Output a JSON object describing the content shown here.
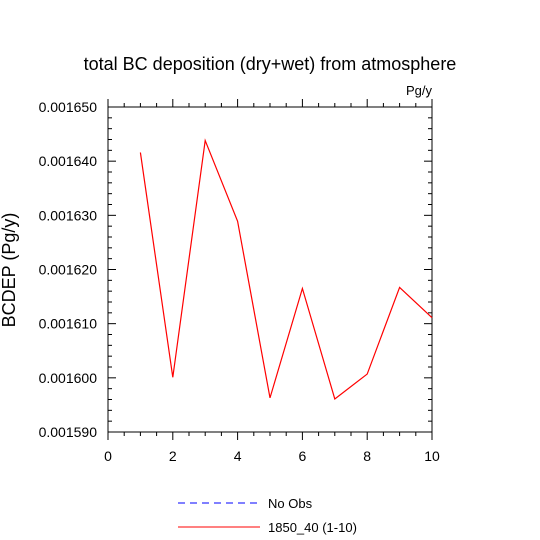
{
  "chart_data": {
    "type": "line",
    "title": "total BC deposition (dry+wet) from atmosphere",
    "units_label": "Pg/y",
    "ylabel": "BCDEP  (Pg/y)",
    "xlabel": "",
    "xlim": [
      0,
      10
    ],
    "ylim": [
      0.00159,
      0.00165
    ],
    "x_ticks": [
      0,
      2,
      4,
      6,
      8,
      10
    ],
    "x_tick_labels": [
      "0",
      "2",
      "4",
      "6",
      "8",
      "10"
    ],
    "y_ticks": [
      0.00159,
      0.0016,
      0.00161,
      0.00162,
      0.00163,
      0.00164,
      0.00165
    ],
    "y_tick_labels": [
      "0.001590",
      "0.001600",
      "0.001610",
      "0.001620",
      "0.001630",
      "0.001640",
      "0.001650"
    ],
    "grid": false,
    "legend_placement": "bottom",
    "series": [
      {
        "name": "1850_40 (1-10)",
        "color": "#ff0000",
        "dash": "solid",
        "x": [
          1,
          2,
          3,
          4,
          5,
          6,
          7,
          8,
          9,
          10
        ],
        "values": [
          0.0016416,
          0.0016001,
          0.0016438,
          0.0016289,
          0.0015963,
          0.0016165,
          0.0015961,
          0.0016007,
          0.0016167,
          0.0016111
        ]
      }
    ],
    "legend": [
      {
        "label": "No Obs",
        "color": "#0000ff",
        "dash": "dashed"
      },
      {
        "label": "1850_40 (1-10)",
        "color": "#ff0000",
        "dash": "solid"
      }
    ]
  }
}
